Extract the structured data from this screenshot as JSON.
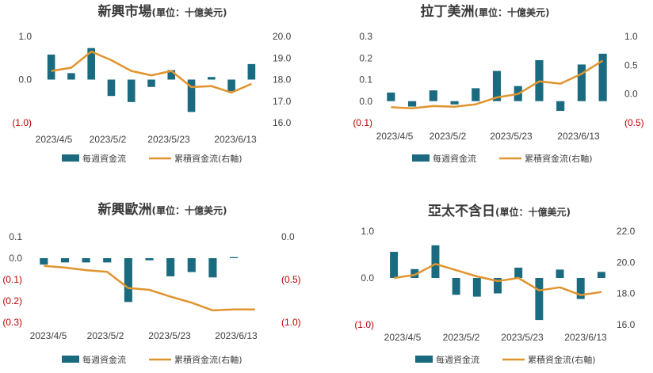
{
  "colors": {
    "bar": "#1a6b80",
    "line": "#e0942e",
    "negative_label": "#c00000",
    "text": "#404040",
    "title": "#3a3a3a"
  },
  "chart_data": [
    {
      "type": "bar+line",
      "title": "新興市場",
      "unit": "(單位：十億美元)",
      "xtick_labels": [
        "2023/4/5",
        "2023/5/2",
        "2023/5/23",
        "2023/6/13"
      ],
      "left_ticks": [
        "1.0",
        "0.0",
        "(1.0)"
      ],
      "right_ticks": [
        "20.0",
        "19.0",
        "18.0",
        "17.0",
        "16.0"
      ],
      "ylim_left": [
        -1.0,
        1.0
      ],
      "ylim_right": [
        16.0,
        20.0
      ],
      "series": [
        {
          "name": "每週資金流",
          "axis": "left",
          "kind": "bar",
          "values": [
            0.58,
            0.15,
            0.73,
            -0.38,
            -0.52,
            -0.17,
            0.22,
            -0.75,
            0.06,
            -0.27,
            0.36
          ]
        },
        {
          "name": "累積資金流(右軸)",
          "axis": "right",
          "kind": "line",
          "values": [
            18.4,
            18.55,
            19.3,
            18.9,
            18.4,
            18.2,
            18.4,
            17.65,
            17.7,
            17.4,
            17.8
          ]
        }
      ],
      "legend": [
        "每週資金流",
        "累積資金流(右軸)"
      ],
      "legend_position": "bottom"
    },
    {
      "type": "bar+line",
      "title": "拉丁美洲",
      "unit": "(單位：十億美元)",
      "xtick_labels": [
        "2023/4/5",
        "2023/5/2",
        "2023/5/23",
        "2023/6/13"
      ],
      "left_ticks": [
        "0.3",
        "0.2",
        "0.1",
        "0.0",
        "(0.1)"
      ],
      "right_ticks": [
        "1.0",
        "0.5",
        "0.0",
        "(0.5)"
      ],
      "ylim_left": [
        -0.1,
        0.3
      ],
      "ylim_right": [
        -0.5,
        1.0
      ],
      "series": [
        {
          "name": "每週資金流",
          "axis": "left",
          "kind": "bar",
          "values": [
            0.04,
            -0.025,
            0.05,
            -0.015,
            0.06,
            0.14,
            0.07,
            0.19,
            -0.045,
            0.17,
            0.22
          ]
        },
        {
          "name": "累積資金流(右軸)",
          "axis": "right",
          "kind": "line",
          "values": [
            -0.23,
            -0.25,
            -0.21,
            -0.22,
            -0.18,
            -0.06,
            0.0,
            0.22,
            0.18,
            0.35,
            0.58
          ]
        }
      ],
      "legend": [
        "每週資金流",
        "累積資金流(右軸)"
      ],
      "legend_position": "bottom"
    },
    {
      "type": "bar+line",
      "title": "新興歐洲",
      "unit": "(單位：十億美元)",
      "xtick_labels": [
        "2023/4/5",
        "2023/5/2",
        "2023/5/23",
        "2023/6/13"
      ],
      "left_ticks": [
        "0.1",
        "0.0",
        "(0.1)",
        "(0.2)",
        "(0.3)"
      ],
      "right_ticks": [
        "0.0",
        "(0.5)",
        "(1.0)"
      ],
      "ylim_left": [
        -0.3,
        0.1
      ],
      "ylim_right": [
        -1.0,
        0.0
      ],
      "series": [
        {
          "name": "每週資金流",
          "axis": "left",
          "kind": "bar",
          "values": [
            -0.03,
            -0.02,
            -0.02,
            -0.02,
            -0.205,
            -0.01,
            -0.085,
            -0.065,
            -0.09,
            0.005,
            0.0
          ]
        },
        {
          "name": "累積資金流(右軸)",
          "axis": "right",
          "kind": "line",
          "values": [
            -0.34,
            -0.36,
            -0.39,
            -0.41,
            -0.6,
            -0.62,
            -0.7,
            -0.77,
            -0.86,
            -0.85,
            -0.85
          ]
        }
      ],
      "legend": [
        "每週資金流",
        "累積資金流(右軸)"
      ],
      "legend_position": "bottom"
    },
    {
      "type": "bar+line",
      "title": "亞太不含日",
      "unit": "(單位：十億美元)",
      "xtick_labels": [
        "2023/4/5",
        "2023/5/2",
        "2023/5/23",
        "2023/6/13"
      ],
      "left_ticks": [
        "1.0",
        "0.0",
        "(1.0)"
      ],
      "right_ticks": [
        "22.0",
        "20.0",
        "18.0",
        "16.0"
      ],
      "ylim_left": [
        -1.0,
        1.0
      ],
      "ylim_right": [
        16.0,
        22.0
      ],
      "series": [
        {
          "name": "每週資金流",
          "axis": "left",
          "kind": "bar",
          "values": [
            0.56,
            0.19,
            0.7,
            -0.36,
            -0.4,
            -0.33,
            0.22,
            -0.9,
            0.18,
            -0.45,
            0.13
          ]
        },
        {
          "name": "累積資金流(右軸)",
          "axis": "right",
          "kind": "line",
          "values": [
            19.0,
            19.2,
            19.9,
            19.5,
            19.1,
            18.8,
            19.0,
            18.2,
            18.4,
            17.9,
            18.1
          ]
        }
      ],
      "legend": [
        "每週資金流",
        "累積資金流(右軸)"
      ],
      "legend_position": "bottom"
    }
  ]
}
